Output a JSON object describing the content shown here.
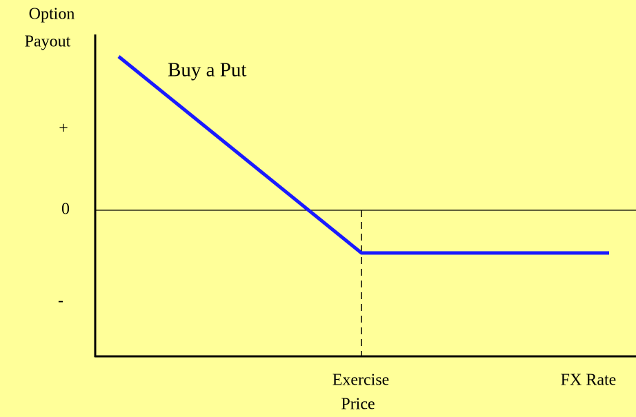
{
  "title": "Buy a Put",
  "y_axis": {
    "label": [
      "Option",
      "Payout"
    ],
    "marks": [
      "+",
      "0",
      "-"
    ]
  },
  "x_axis": {
    "exercise_label": [
      "Exercise",
      "Price"
    ],
    "label": "FX Rate"
  }
}
